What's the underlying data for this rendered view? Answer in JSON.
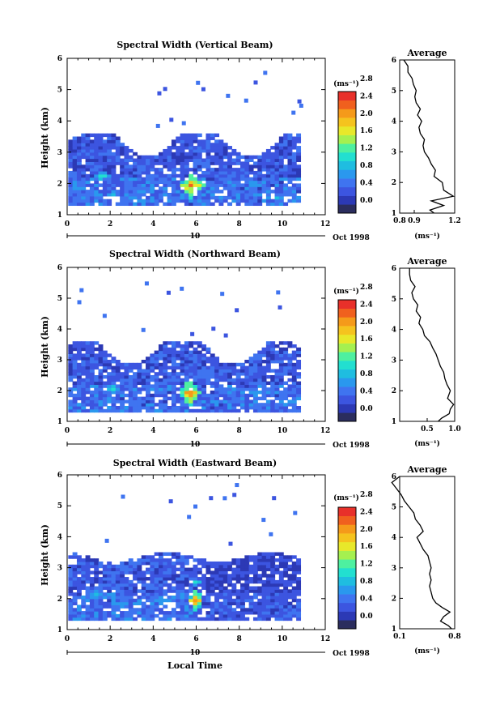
{
  "xlabel": "Local Time",
  "date_label": "Oct 1998",
  "day_label": "10",
  "colorbar_unit": "(ms⁻¹)",
  "colorbar_ticks": [
    "0.0",
    "0.4",
    "0.8",
    "1.2",
    "1.6",
    "2.0",
    "2.4",
    "2.8"
  ],
  "colors": [
    "#2b2d5e",
    "#2c39b5",
    "#3c55e0",
    "#3f74f0",
    "#2a98ee",
    "#1fbde0",
    "#22dfd0",
    "#4ef0a0",
    "#a5f050",
    "#e8e82a",
    "#f5c31e",
    "#f59a1a",
    "#f0601e",
    "#e8302a"
  ],
  "chart_data": [
    {
      "type": "heatmap",
      "title": "Spectral Width (Vertical Beam)",
      "xlabel": "",
      "ylabel": "Height (km)",
      "xlim": [
        0,
        12
      ],
      "ylim": [
        1,
        6
      ],
      "x_ticks": [
        "0",
        "2",
        "4",
        "6",
        "8",
        "10",
        "12"
      ],
      "y_ticks": [
        "1",
        "2",
        "3",
        "4",
        "5",
        "6"
      ],
      "z_range": [
        0,
        3.0
      ],
      "hotspots": [
        {
          "x": 5.7,
          "y": 1.9,
          "w": 0.6,
          "h": 0.45,
          "z": 2.8
        },
        {
          "x": 1.5,
          "y": 2.2,
          "w": 0.4,
          "h": 0.2,
          "z": 1.6
        },
        {
          "x": 2.0,
          "y": 1.6,
          "w": 0.3,
          "h": 0.2,
          "z": 1.4
        },
        {
          "x": 9.8,
          "y": 1.5,
          "w": 0.6,
          "h": 0.2,
          "z": 1.2
        }
      ],
      "profile": {
        "title": "Average",
        "xlabel": "(ms⁻¹)",
        "xlim": [
          0.8,
          1.2
        ],
        "x_ticks": [
          "0.8",
          "0.9",
          "1.2"
        ],
        "y_ticks": [
          "1",
          "2",
          "3",
          "4",
          "5",
          "6"
        ],
        "points": [
          [
            1.0,
            1.05
          ],
          [
            1.1,
            1.02
          ],
          [
            1.25,
            1.12
          ],
          [
            1.4,
            1.03
          ],
          [
            1.55,
            1.19
          ],
          [
            1.75,
            1.12
          ],
          [
            2.0,
            1.11
          ],
          [
            2.2,
            1.05
          ],
          [
            2.4,
            1.06
          ],
          [
            2.6,
            1.03
          ],
          [
            2.8,
            1.01
          ],
          [
            3.0,
            0.98
          ],
          [
            3.2,
            0.97
          ],
          [
            3.4,
            0.98
          ],
          [
            3.6,
            0.95
          ],
          [
            3.8,
            0.94
          ],
          [
            4.0,
            0.96
          ],
          [
            4.2,
            0.93
          ],
          [
            4.4,
            0.95
          ],
          [
            4.6,
            0.92
          ],
          [
            4.8,
            0.91
          ],
          [
            5.0,
            0.92
          ],
          [
            5.2,
            0.9
          ],
          [
            5.4,
            0.89
          ],
          [
            5.6,
            0.86
          ],
          [
            5.8,
            0.86
          ],
          [
            6.0,
            0.83
          ]
        ]
      }
    },
    {
      "type": "heatmap",
      "title": "Spectral Width (Northward Beam)",
      "xlabel": "",
      "ylabel": "Height (km)",
      "xlim": [
        0,
        12
      ],
      "ylim": [
        1,
        6
      ],
      "x_ticks": [
        "0",
        "2",
        "4",
        "6",
        "8",
        "10",
        "12"
      ],
      "y_ticks": [
        "1",
        "2",
        "3",
        "4",
        "5",
        "6"
      ],
      "z_range": [
        0,
        3.0
      ],
      "hotspots": [
        {
          "x": 5.6,
          "y": 1.9,
          "w": 0.5,
          "h": 0.45,
          "z": 2.8
        },
        {
          "x": 2.0,
          "y": 2.0,
          "w": 0.4,
          "h": 0.2,
          "z": 1.4
        },
        {
          "x": 10.3,
          "y": 1.6,
          "w": 0.6,
          "h": 0.2,
          "z": 1.2
        }
      ],
      "profile": {
        "title": "Average",
        "xlabel": "(ms⁻¹)",
        "xlim": [
          0.0,
          1.0
        ],
        "x_ticks": [
          "0.5",
          "1.0"
        ],
        "y_ticks": [
          "1",
          "2",
          "3",
          "4",
          "5",
          "6"
        ],
        "points": [
          [
            1.0,
            0.7
          ],
          [
            1.1,
            0.76
          ],
          [
            1.25,
            0.9
          ],
          [
            1.4,
            0.92
          ],
          [
            1.55,
            0.98
          ],
          [
            1.75,
            0.87
          ],
          [
            2.0,
            0.92
          ],
          [
            2.2,
            0.86
          ],
          [
            2.4,
            0.82
          ],
          [
            2.6,
            0.8
          ],
          [
            2.8,
            0.74
          ],
          [
            3.0,
            0.7
          ],
          [
            3.2,
            0.66
          ],
          [
            3.4,
            0.6
          ],
          [
            3.6,
            0.55
          ],
          [
            3.8,
            0.45
          ],
          [
            4.0,
            0.42
          ],
          [
            4.2,
            0.35
          ],
          [
            4.4,
            0.38
          ],
          [
            4.6,
            0.3
          ],
          [
            4.8,
            0.33
          ],
          [
            5.0,
            0.25
          ],
          [
            5.2,
            0.22
          ],
          [
            5.4,
            0.28
          ],
          [
            5.6,
            0.2
          ],
          [
            5.8,
            0.18
          ],
          [
            6.0,
            0.18
          ]
        ]
      }
    },
    {
      "type": "heatmap",
      "title": "Spectral Width (Eastward Beam)",
      "xlabel": "Local Time",
      "ylabel": "Height (km)",
      "xlim": [
        0,
        12
      ],
      "ylim": [
        1,
        6
      ],
      "x_ticks": [
        "0",
        "2",
        "4",
        "6",
        "8",
        "10",
        "12"
      ],
      "y_ticks": [
        "1",
        "2",
        "3",
        "4",
        "5",
        "6"
      ],
      "z_range": [
        0,
        3.0
      ],
      "hotspots": [
        {
          "x": 5.9,
          "y": 1.9,
          "w": 0.35,
          "h": 0.4,
          "z": 2.8
        },
        {
          "x": 5.9,
          "y": 2.5,
          "w": 0.2,
          "h": 0.15,
          "z": 1.8
        },
        {
          "x": 1.2,
          "y": 2.1,
          "w": 0.5,
          "h": 0.25,
          "z": 1.3
        }
      ],
      "profile": {
        "title": "Average",
        "xlabel": "(ms⁻¹)",
        "xlim": [
          0.1,
          0.8
        ],
        "x_ticks": [
          "0.1",
          "0.8"
        ],
        "y_ticks": [
          "1",
          "2",
          "3",
          "4",
          "5",
          "6"
        ],
        "points": [
          [
            1.0,
            0.76
          ],
          [
            1.1,
            0.72
          ],
          [
            1.25,
            0.62
          ],
          [
            1.4,
            0.66
          ],
          [
            1.55,
            0.74
          ],
          [
            1.7,
            0.64
          ],
          [
            1.85,
            0.56
          ],
          [
            2.0,
            0.52
          ],
          [
            2.2,
            0.5
          ],
          [
            2.4,
            0.48
          ],
          [
            2.6,
            0.5
          ],
          [
            2.8,
            0.48
          ],
          [
            3.0,
            0.5
          ],
          [
            3.2,
            0.48
          ],
          [
            3.4,
            0.46
          ],
          [
            3.6,
            0.4
          ],
          [
            3.8,
            0.36
          ],
          [
            4.0,
            0.32
          ],
          [
            4.2,
            0.4
          ],
          [
            4.4,
            0.36
          ],
          [
            4.6,
            0.3
          ],
          [
            4.8,
            0.28
          ],
          [
            5.0,
            0.22
          ],
          [
            5.2,
            0.16
          ],
          [
            5.4,
            0.12
          ],
          [
            5.6,
            0.06
          ],
          [
            5.8,
            0.0
          ],
          [
            6.0,
            0.1
          ]
        ]
      }
    }
  ]
}
